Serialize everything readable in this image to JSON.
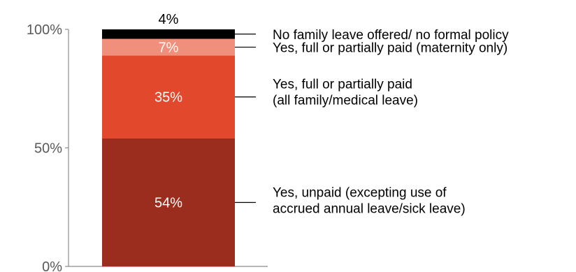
{
  "chart_data": {
    "type": "bar",
    "stacked": true,
    "ylim": [
      0,
      100
    ],
    "yticks": [
      "0%",
      "50%",
      "100%"
    ],
    "ytick_values": [
      0,
      50,
      100
    ],
    "grid": false,
    "legend_placement": "right",
    "segments": [
      {
        "value": 54,
        "label": "54%",
        "color": "#9b2d1f",
        "label_color": "#ffffff",
        "legend": [
          "Yes, unpaid (excepting use of",
          "accrued annual leave/sick leave)"
        ]
      },
      {
        "value": 35,
        "label": "35%",
        "color": "#e2482c",
        "label_color": "#ffffff",
        "legend": [
          "Yes, full or partially paid",
          "(all family/medical leave)"
        ]
      },
      {
        "value": 7,
        "label": "7%",
        "color": "#f0907c",
        "label_color": "#ffffff",
        "legend": [
          "Yes, full or partially paid  (maternity only)"
        ]
      },
      {
        "value": 4,
        "label": "4%",
        "color": "#000000",
        "label_color": "#000000",
        "legend": [
          "No family leave offered/ no formal policy"
        ]
      }
    ]
  }
}
